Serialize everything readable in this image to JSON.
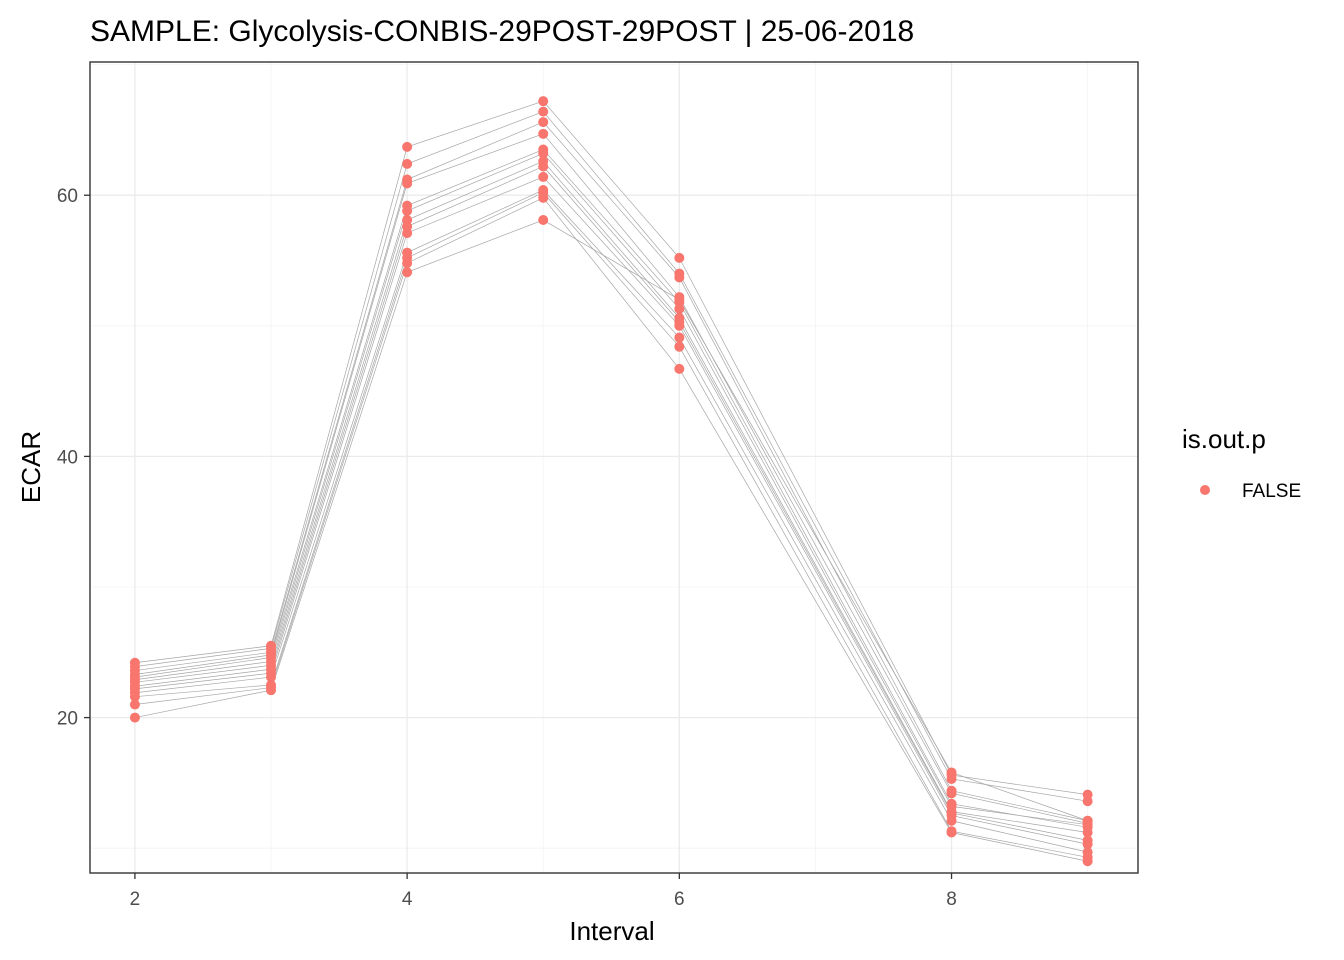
{
  "chart_data": {
    "type": "line",
    "title": "SAMPLE:  Glycolysis-CONBIS-29POST-29POST | 25-06-2018",
    "xlabel": "Interval",
    "ylabel": "ECAR",
    "x": [
      2,
      3,
      4,
      5,
      6,
      8,
      9
    ],
    "x_ticks": [
      2,
      4,
      6,
      8
    ],
    "y_ticks": [
      20,
      40,
      60
    ],
    "xlim": [
      1.67,
      9.37
    ],
    "ylim": [
      8.1,
      70.2
    ],
    "grid": true,
    "legend": {
      "title": "is.out.p",
      "placement": "right",
      "entries": [
        {
          "label": "FALSE",
          "color": "#F8766D"
        }
      ]
    },
    "point_color": "#F8766D",
    "line_color": "#a6a6a6",
    "series": [
      {
        "values": [
          24.2,
          25.5,
          63.7,
          67.2,
          55.2,
          15.6,
          14.1
        ]
      },
      {
        "values": [
          23.9,
          25.3,
          62.4,
          66.4,
          54.0,
          15.3,
          13.6
        ]
      },
      {
        "values": [
          23.6,
          25.0,
          61.2,
          65.6,
          53.7,
          14.4,
          12.1
        ]
      },
      {
        "values": [
          23.3,
          24.8,
          60.9,
          64.7,
          52.2,
          14.2,
          11.9
        ]
      },
      {
        "values": [
          23.1,
          24.6,
          59.2,
          63.5,
          51.8,
          13.4,
          11.6
        ]
      },
      {
        "values": [
          22.9,
          24.3,
          58.8,
          63.2,
          51.3,
          13.2,
          11.8
        ]
      },
      {
        "values": [
          22.7,
          24.0,
          58.1,
          62.6,
          50.6,
          12.8,
          11.2
        ]
      },
      {
        "values": [
          22.4,
          23.7,
          57.6,
          62.2,
          50.3,
          12.7,
          10.6
        ]
      },
      {
        "values": [
          22.2,
          23.4,
          57.1,
          61.4,
          50.0,
          12.5,
          10.3
        ]
      },
      {
        "values": [
          21.9,
          23.1,
          55.6,
          60.4,
          49.1,
          12.1,
          9.7
        ]
      },
      {
        "values": [
          21.6,
          22.5,
          55.2,
          60.2,
          48.4,
          11.3,
          9.3
        ]
      },
      {
        "values": [
          21.0,
          22.3,
          54.8,
          59.8,
          46.7,
          11.2,
          9.0
        ]
      },
      {
        "values": [
          20.0,
          22.1,
          54.1,
          58.1,
          52.0,
          15.8,
          12.1
        ]
      }
    ]
  }
}
